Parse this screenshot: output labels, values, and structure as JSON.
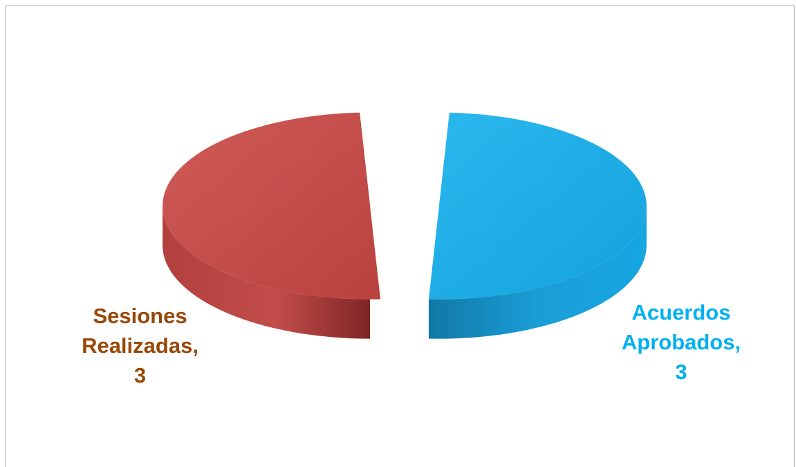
{
  "chart_data": {
    "type": "pie",
    "style": "3d-exploded",
    "legend": "none",
    "slices": [
      {
        "label_lines": [
          "Sesiones",
          "Realizadas,",
          "3"
        ],
        "category": "Sesiones Realizadas",
        "value": 3,
        "color": "#c0504d",
        "label_color": "#984806"
      },
      {
        "label_lines": [
          "Acuerdos",
          "Aprobados,",
          "3"
        ],
        "category": "Acuerdos Aprobados",
        "value": 3,
        "color": "#1ea7e0",
        "label_color": "#00b0f0"
      }
    ]
  }
}
